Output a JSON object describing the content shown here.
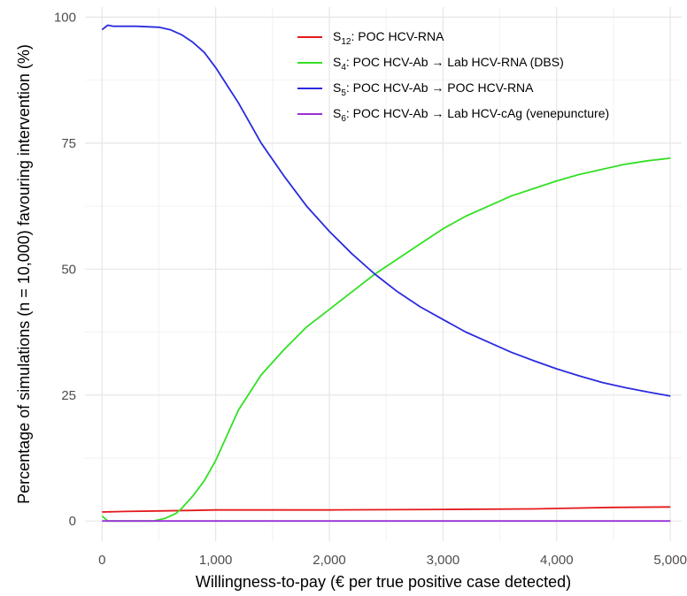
{
  "chart_data": {
    "type": "line",
    "xlabel": "Willingness-to-pay (€ per true positive case detected)",
    "ylabel": "Percentage of simulations (n = 10,000) favouring intervention (%)",
    "xlim": [
      -150,
      5100
    ],
    "ylim": [
      -4,
      102
    ],
    "x_ticks": [
      0,
      1000,
      2000,
      3000,
      4000,
      5000
    ],
    "x_tick_labels": [
      "0",
      "1,000",
      "2,000",
      "3,000",
      "4,000",
      "5,000"
    ],
    "y_ticks": [
      0,
      25,
      50,
      75,
      100
    ],
    "y_tick_labels": [
      "0",
      "25",
      "50",
      "75",
      "100"
    ],
    "grid": true,
    "legend_position": "top-right",
    "series": [
      {
        "id": "s12",
        "name": "S12: POC HCV-RNA",
        "legend_prefix": "S",
        "legend_sub": "12",
        "legend_rest": ": POC HCV-RNA",
        "color": "#e41a1c",
        "x": [
          0,
          200,
          500,
          800,
          1000,
          2000,
          3000,
          3800,
          4000,
          4500,
          5000
        ],
        "y": [
          1.8,
          1.9,
          2.0,
          2.1,
          2.2,
          2.2,
          2.3,
          2.4,
          2.5,
          2.7,
          2.8
        ]
      },
      {
        "id": "s4",
        "name": "S4: POC HCV-Ab → Lab HCV-RNA (DBS)",
        "legend_prefix": "S",
        "legend_sub": "4",
        "legend_rest": ": POC HCV-Ab → Lab HCV-RNA (DBS)",
        "color": "#33e024",
        "x": [
          0,
          50,
          300,
          450,
          550,
          650,
          700,
          800,
          900,
          1000,
          1100,
          1200,
          1400,
          1600,
          1800,
          2000,
          2200,
          2400,
          2600,
          2800,
          3000,
          3200,
          3400,
          3600,
          3800,
          4000,
          4200,
          4400,
          4600,
          4800,
          5000
        ],
        "y": [
          1.0,
          0,
          0,
          0,
          0.5,
          1.5,
          2.5,
          5,
          8,
          12,
          17,
          22,
          29,
          34,
          38.5,
          42,
          45.5,
          49,
          52,
          55,
          58,
          60.5,
          62.5,
          64.5,
          66,
          67.5,
          68.8,
          69.8,
          70.8,
          71.5,
          72
        ]
      },
      {
        "id": "s5",
        "name": "S5: POC HCV-Ab → POC HCV-RNA",
        "legend_prefix": "S",
        "legend_sub": "5",
        "legend_rest": ": POC HCV-Ab → POC HCV-RNA",
        "color": "#2b2bdf",
        "x": [
          0,
          50,
          100,
          300,
          500,
          600,
          700,
          800,
          900,
          1000,
          1200,
          1400,
          1600,
          1800,
          2000,
          2200,
          2400,
          2600,
          2800,
          3000,
          3200,
          3400,
          3600,
          3800,
          4000,
          4200,
          4400,
          4600,
          4800,
          5000
        ],
        "y": [
          97.5,
          98.4,
          98.2,
          98.2,
          98.0,
          97.5,
          96.5,
          95,
          93,
          90,
          83,
          75,
          68.5,
          62.5,
          57.5,
          53,
          49,
          45.5,
          42.5,
          40,
          37.5,
          35.5,
          33.5,
          31.8,
          30.2,
          28.8,
          27.5,
          26.5,
          25.6,
          24.8
        ]
      },
      {
        "id": "s6",
        "name": "S6: POC HCV-Ab → Lab HCV-cAg (venepuncture)",
        "legend_prefix": "S",
        "legend_sub": "6",
        "legend_rest": ": POC HCV-Ab → Lab HCV-cAg (venepuncture)",
        "color": "#9b2fd6",
        "x": [
          0,
          5000
        ],
        "y": [
          0,
          0
        ]
      }
    ]
  }
}
